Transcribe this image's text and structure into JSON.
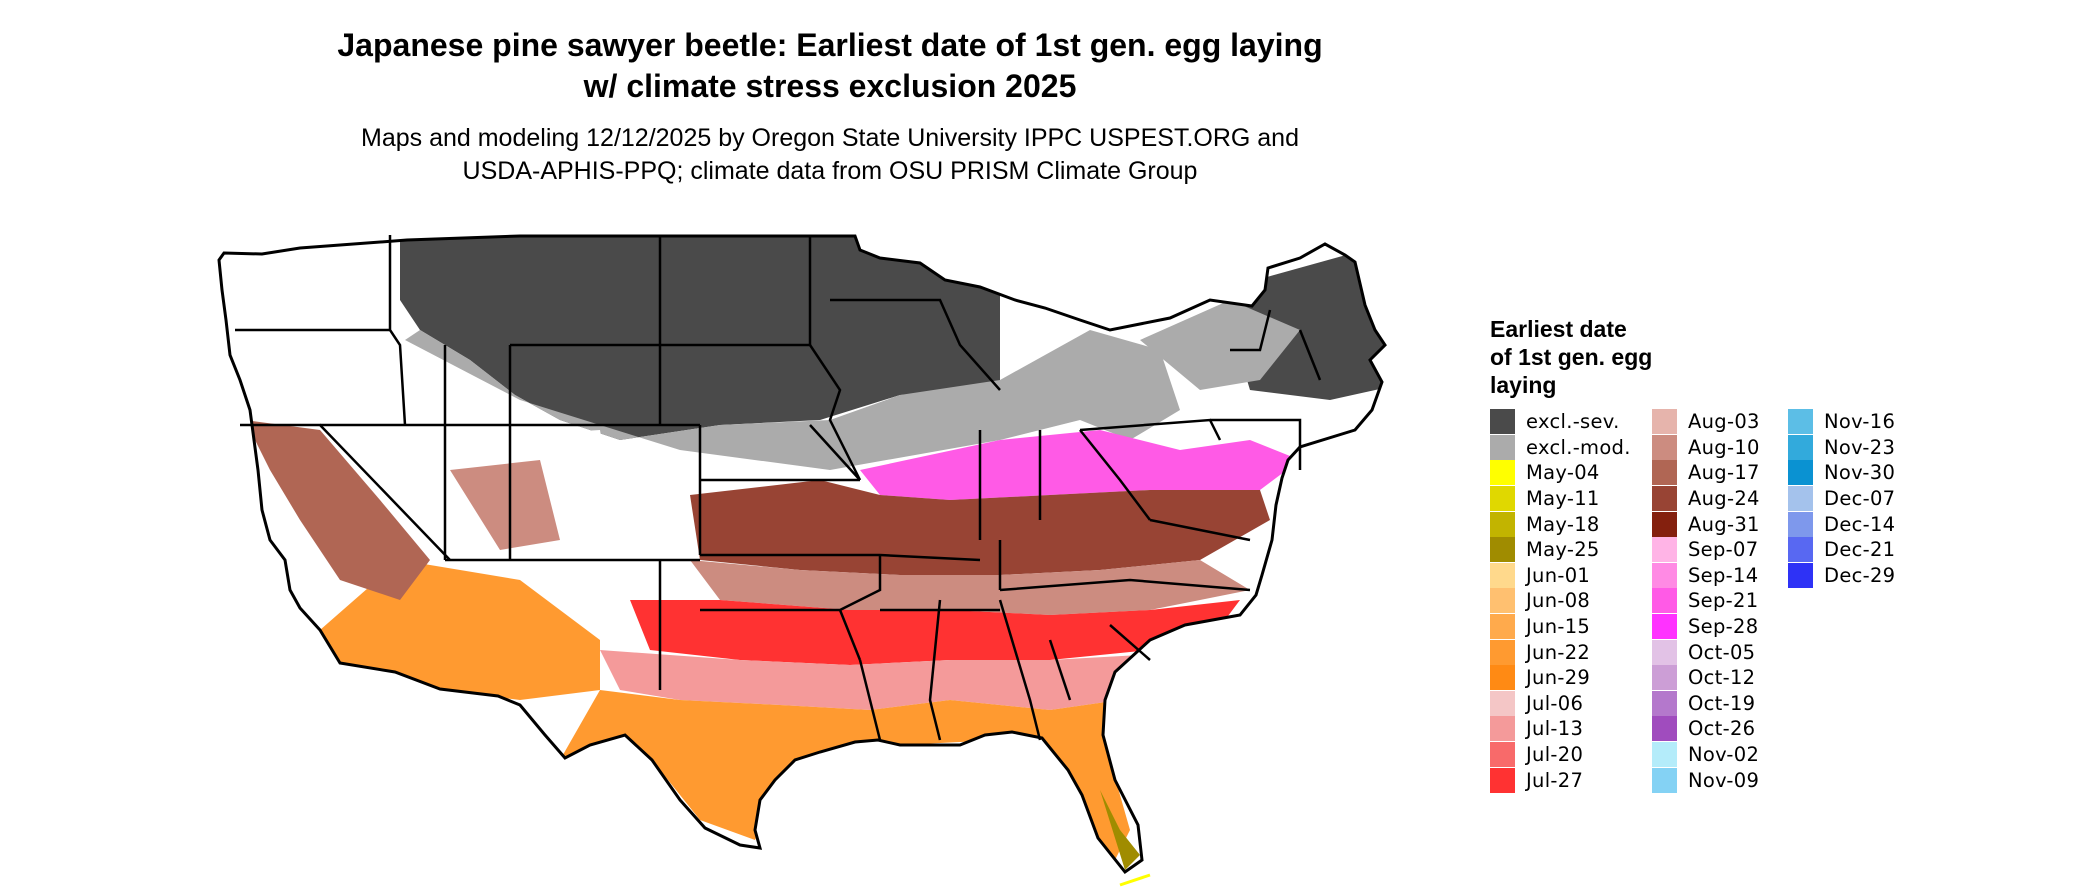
{
  "title": {
    "line1": "Japanese pine sawyer beetle: Earliest date of 1st gen. egg laying",
    "line2": "w/ climate stress exclusion 2025"
  },
  "subtitle": {
    "line1": "Maps and modeling 12/12/2025 by Oregon State University IPPC USPEST.ORG and",
    "line2": "USDA-APHIS-PPQ; climate data from OSU PRISM Climate Group"
  },
  "legend": {
    "title_lines": [
      "Earliest date",
      "of 1st gen. egg",
      "laying"
    ],
    "columns": [
      [
        {
          "label": "excl.-sev.",
          "color": "#4a4a4a"
        },
        {
          "label": "excl.-mod.",
          "color": "#ababab"
        },
        {
          "label": "May-04",
          "color": "#ffff00"
        },
        {
          "label": "May-11",
          "color": "#e0d800"
        },
        {
          "label": "May-18",
          "color": "#c2b400"
        },
        {
          "label": "May-25",
          "color": "#a08c00"
        },
        {
          "label": "Jun-01",
          "color": "#ffd98c"
        },
        {
          "label": "Jun-08",
          "color": "#ffc070"
        },
        {
          "label": "Jun-15",
          "color": "#ffaa4c"
        },
        {
          "label": "Jun-22",
          "color": "#ff9a30"
        },
        {
          "label": "Jun-29",
          "color": "#ff8a14"
        },
        {
          "label": "Jul-06",
          "color": "#f4c6c6"
        },
        {
          "label": "Jul-13",
          "color": "#f49a9a"
        },
        {
          "label": "Jul-20",
          "color": "#f86a6a"
        },
        {
          "label": "Jul-27",
          "color": "#ff3232"
        }
      ],
      [
        {
          "label": "Aug-03",
          "color": "#e6b4ac"
        },
        {
          "label": "Aug-10",
          "color": "#cc8c80"
        },
        {
          "label": "Aug-17",
          "color": "#b06654"
        },
        {
          "label": "Aug-24",
          "color": "#984434"
        },
        {
          "label": "Aug-31",
          "color": "#84200e"
        },
        {
          "label": "Sep-07",
          "color": "#ffb4e6"
        },
        {
          "label": "Sep-14",
          "color": "#ff8ae4"
        },
        {
          "label": "Sep-21",
          "color": "#ff5ae6"
        },
        {
          "label": "Sep-28",
          "color": "#ff32ff"
        },
        {
          "label": "Oct-05",
          "color": "#e2c2e6"
        },
        {
          "label": "Oct-12",
          "color": "#cc9ed6"
        },
        {
          "label": "Oct-19",
          "color": "#b478cc"
        },
        {
          "label": "Oct-26",
          "color": "#a04cbe"
        },
        {
          "label": "Nov-02",
          "color": "#b4ecfa"
        },
        {
          "label": "Nov-09",
          "color": "#84d2f4"
        }
      ],
      [
        {
          "label": "Nov-16",
          "color": "#5cbee6"
        },
        {
          "label": "Nov-23",
          "color": "#32aadc"
        },
        {
          "label": "Nov-30",
          "color": "#0a92d2"
        },
        {
          "label": "Dec-07",
          "color": "#a4c2ec"
        },
        {
          "label": "Dec-14",
          "color": "#7e98ec"
        },
        {
          "label": "Dec-21",
          "color": "#5868f2"
        },
        {
          "label": "Dec-29",
          "color": "#2e32f6"
        }
      ]
    ]
  }
}
